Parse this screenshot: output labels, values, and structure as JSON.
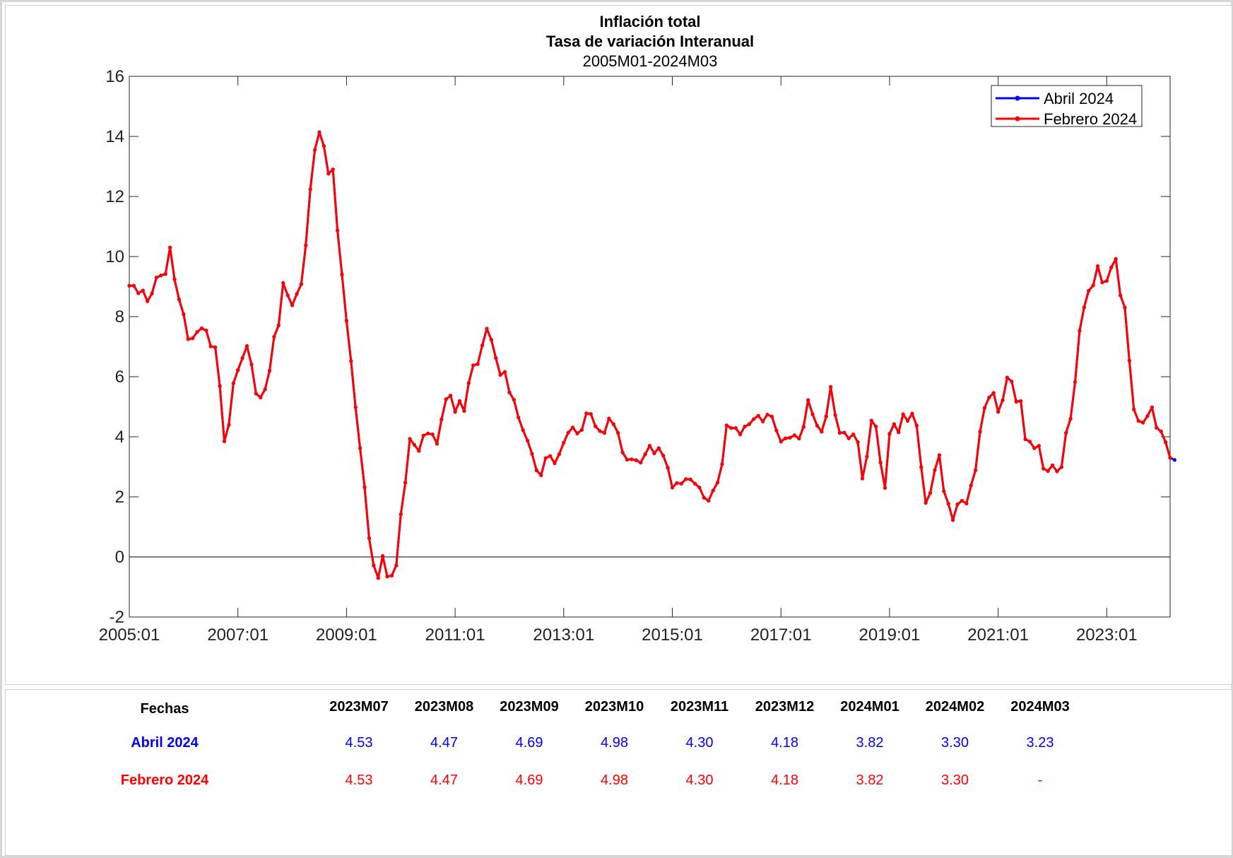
{
  "colors": {
    "abril": "#0000ff",
    "febrero": "#ff0000",
    "axis": "#262626"
  },
  "chart_data": {
    "type": "line",
    "title": "Inflación total",
    "subtitle": "Tasa de variación Interanual",
    "period": "2005M01-2024M03",
    "ylim": [
      -2,
      16
    ],
    "yticks": [
      -2,
      0,
      2,
      4,
      6,
      8,
      10,
      12,
      14,
      16
    ],
    "xticks": [
      "2005:01",
      "2007:01",
      "2009:01",
      "2011:01",
      "2013:01",
      "2015:01",
      "2017:01",
      "2019:01",
      "2021:01",
      "2023:01"
    ],
    "x_start": "2005:01",
    "x_end": "2024:03",
    "grid": false,
    "zero_line": true,
    "legend_position": "top-right",
    "legend": [
      "Abril 2024",
      "Febrero 2024"
    ],
    "series": [
      {
        "name": "Febrero 2024",
        "color": "#ff0000",
        "values": [
          9.03,
          9.03,
          8.78,
          8.87,
          8.51,
          8.77,
          9.3,
          9.37,
          9.42,
          10.3,
          9.24,
          8.57,
          8.08,
          7.25,
          7.28,
          7.49,
          7.61,
          7.54,
          7.01,
          6.98,
          5.69,
          3.85,
          4.4,
          5.78,
          6.22,
          6.62,
          7.02,
          6.41,
          5.44,
          5.31,
          5.58,
          6.2,
          7.33,
          7.71,
          9.12,
          8.71,
          8.38,
          8.75,
          9.08,
          10.37,
          12.24,
          13.55,
          14.14,
          13.68,
          12.76,
          12.9,
          10.87,
          9.4,
          7.86,
          6.52,
          4.98,
          3.62,
          2.32,
          0.62,
          -0.28,
          -0.7,
          0.03,
          -0.65,
          -0.62,
          -0.28,
          1.42,
          2.47,
          3.93,
          3.73,
          3.53,
          4.04,
          4.11,
          4.08,
          3.77,
          4.58,
          5.25,
          5.37,
          4.83,
          5.19,
          4.86,
          5.79,
          6.38,
          6.42,
          7.04,
          7.6,
          7.23,
          6.62,
          6.06,
          6.16,
          5.48,
          5.23,
          4.64,
          4.22,
          3.87,
          3.43,
          2.88,
          2.72,
          3.29,
          3.36,
          3.12,
          3.42,
          3.8,
          4.14,
          4.31,
          4.11,
          4.23,
          4.78,
          4.76,
          4.35,
          4.19,
          4.13,
          4.61,
          4.42,
          4.13,
          3.48,
          3.24,
          3.25,
          3.22,
          3.14,
          3.42,
          3.7,
          3.45,
          3.62,
          3.37,
          2.97,
          2.31,
          2.46,
          2.44,
          2.59,
          2.58,
          2.44,
          2.31,
          1.97,
          1.87,
          2.21,
          2.48,
          3.09,
          4.38,
          4.29,
          4.29,
          4.08,
          4.34,
          4.42,
          4.59,
          4.7,
          4.51,
          4.74,
          4.67,
          4.21,
          3.84,
          3.95,
          3.97,
          4.05,
          3.94,
          4.33,
          5.22,
          4.75,
          4.37,
          4.17,
          4.68,
          5.66,
          4.72,
          4.13,
          4.14,
          3.95,
          4.08,
          3.82,
          2.61,
          3.34,
          4.54,
          4.34,
          3.14,
          2.3,
          4.1,
          4.42,
          4.15,
          4.75,
          4.53,
          4.77,
          4.37,
          2.99,
          1.8,
          2.13,
          2.89,
          3.39,
          2.19,
          1.77,
          1.23,
          1.75,
          1.87,
          1.78,
          2.38,
          2.89,
          4.17,
          4.96,
          5.31,
          5.46,
          4.83,
          5.22,
          5.97,
          5.84,
          5.17,
          5.19,
          3.92,
          3.84,
          3.62,
          3.7,
          2.94,
          2.86,
          3.05,
          2.85,
          2.99,
          4.13,
          4.6,
          5.82,
          7.53,
          8.31,
          8.86,
          9.04,
          9.68,
          9.14,
          9.19,
          9.64,
          9.92,
          8.71,
          8.3,
          6.53,
          4.91,
          4.53,
          4.47,
          4.69,
          4.98,
          4.3,
          4.18,
          3.82,
          3.3
        ]
      },
      {
        "name": "Abril 2024",
        "color": "#0000ff",
        "values": [
          9.03,
          9.03,
          8.78,
          8.87,
          8.51,
          8.77,
          9.3,
          9.37,
          9.42,
          10.3,
          9.24,
          8.57,
          8.08,
          7.25,
          7.28,
          7.49,
          7.61,
          7.54,
          7.01,
          6.98,
          5.69,
          3.85,
          4.4,
          5.78,
          6.22,
          6.62,
          7.02,
          6.41,
          5.44,
          5.31,
          5.58,
          6.2,
          7.33,
          7.71,
          9.12,
          8.71,
          8.38,
          8.75,
          9.08,
          10.37,
          12.24,
          13.55,
          14.14,
          13.68,
          12.76,
          12.9,
          10.87,
          9.4,
          7.86,
          6.52,
          4.98,
          3.62,
          2.32,
          0.62,
          -0.28,
          -0.7,
          0.03,
          -0.65,
          -0.62,
          -0.28,
          1.42,
          2.47,
          3.93,
          3.73,
          3.53,
          4.04,
          4.11,
          4.08,
          3.77,
          4.58,
          5.25,
          5.37,
          4.83,
          5.19,
          4.86,
          5.79,
          6.38,
          6.42,
          7.04,
          7.6,
          7.23,
          6.62,
          6.06,
          6.16,
          5.48,
          5.23,
          4.64,
          4.22,
          3.87,
          3.43,
          2.88,
          2.72,
          3.29,
          3.36,
          3.12,
          3.42,
          3.8,
          4.14,
          4.31,
          4.11,
          4.23,
          4.78,
          4.76,
          4.35,
          4.19,
          4.13,
          4.61,
          4.42,
          4.13,
          3.48,
          3.24,
          3.25,
          3.22,
          3.14,
          3.42,
          3.7,
          3.45,
          3.62,
          3.37,
          2.97,
          2.31,
          2.46,
          2.44,
          2.59,
          2.58,
          2.44,
          2.31,
          1.97,
          1.87,
          2.21,
          2.48,
          3.09,
          4.38,
          4.29,
          4.29,
          4.08,
          4.34,
          4.42,
          4.59,
          4.7,
          4.51,
          4.74,
          4.67,
          4.21,
          3.84,
          3.95,
          3.97,
          4.05,
          3.94,
          4.33,
          5.22,
          4.75,
          4.37,
          4.17,
          4.68,
          5.66,
          4.72,
          4.13,
          4.14,
          3.95,
          4.08,
          3.82,
          2.61,
          3.34,
          4.54,
          4.34,
          3.14,
          2.3,
          4.1,
          4.42,
          4.15,
          4.75,
          4.53,
          4.77,
          4.37,
          2.99,
          1.8,
          2.13,
          2.89,
          3.39,
          2.19,
          1.77,
          1.23,
          1.75,
          1.87,
          1.78,
          2.38,
          2.89,
          4.17,
          4.96,
          5.31,
          5.46,
          4.83,
          5.22,
          5.97,
          5.84,
          5.17,
          5.19,
          3.92,
          3.84,
          3.62,
          3.7,
          2.94,
          2.86,
          3.05,
          2.85,
          2.99,
          4.13,
          4.6,
          5.82,
          7.53,
          8.31,
          8.86,
          9.04,
          9.68,
          9.14,
          9.19,
          9.64,
          9.92,
          8.71,
          8.3,
          6.53,
          4.91,
          4.53,
          4.47,
          4.69,
          4.98,
          4.3,
          4.18,
          3.82,
          3.3,
          3.23
        ]
      }
    ]
  },
  "table": {
    "header_label": "Fechas",
    "columns": [
      "2023M07",
      "2023M08",
      "2023M09",
      "2023M10",
      "2023M11",
      "2023M12",
      "2024M01",
      "2024M02",
      "2024M03"
    ],
    "rows": [
      {
        "label": "Abril 2024",
        "color": "#0000ff",
        "values": [
          "4.53",
          "4.47",
          "4.69",
          "4.98",
          "4.30",
          "4.18",
          "3.82",
          "3.30",
          "3.23"
        ]
      },
      {
        "label": "Febrero 2024",
        "color": "#ff0000",
        "values": [
          "4.53",
          "4.47",
          "4.69",
          "4.98",
          "4.30",
          "4.18",
          "3.82",
          "3.30",
          "-"
        ]
      }
    ]
  }
}
